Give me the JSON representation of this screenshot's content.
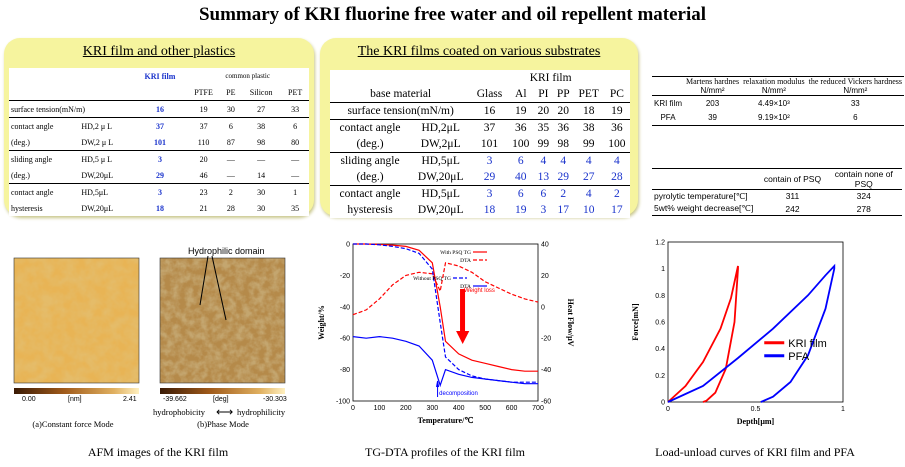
{
  "title": "Summary of  KRI  fluorine free water and oil repellent material",
  "plastics": {
    "heading": "KRI film and other plastics",
    "kri_header": "KRI film",
    "group_header": "common plastic",
    "columns": [
      "PTFE",
      "PE",
      "Silicon",
      "PET"
    ],
    "rows": [
      {
        "label": "surface tension(mN/m)",
        "sub": "",
        "kri": "16",
        "vals": [
          "19",
          "30",
          "27",
          "33"
        ]
      },
      {
        "label": "contact angle",
        "sub": "HD,2 μ L",
        "kri": "37",
        "vals": [
          "37",
          "6",
          "38",
          "6"
        ]
      },
      {
        "label": "(deg.)",
        "sub": "DW,2 μ L",
        "kri": "101",
        "vals": [
          "110",
          "87",
          "98",
          "80"
        ]
      },
      {
        "label": "sliding angle",
        "sub": "HD,5 μ L",
        "kri": "3",
        "vals": [
          "20",
          "—",
          "—",
          "—"
        ]
      },
      {
        "label": "(deg.)",
        "sub": "DW,20μL",
        "kri": "29",
        "vals": [
          "46",
          "—",
          "14",
          "—"
        ]
      },
      {
        "label": "contact angle",
        "sub": "HD,5μL",
        "kri": "3",
        "vals": [
          "23",
          "2",
          "30",
          "1"
        ]
      },
      {
        "label": "hysteresis",
        "sub": "DW,20μL",
        "kri": "18",
        "vals": [
          "21",
          "28",
          "30",
          "35"
        ]
      }
    ]
  },
  "substrates": {
    "heading": "The KRI films coated on various substrates",
    "group_header": "KRI film",
    "base_label": "base material",
    "columns": [
      "Glass",
      "Al",
      "PI",
      "PP",
      "PET",
      "PC"
    ],
    "rows": [
      {
        "label": "surface tension(mN/m)",
        "sub": "",
        "vals": [
          "16",
          "19",
          "20",
          "20",
          "18",
          "19"
        ]
      },
      {
        "label": "contact angle",
        "sub": "HD,2μL",
        "vals": [
          "37",
          "36",
          "35",
          "36",
          "38",
          "36"
        ]
      },
      {
        "label": "(deg.)",
        "sub": "DW,2μL",
        "vals": [
          "101",
          "100",
          "99",
          "98",
          "99",
          "100"
        ]
      },
      {
        "label": "sliding angle",
        "sub": "HD,5μL",
        "vals": [
          "3",
          "6",
          "4",
          "4",
          "4",
          "4"
        ]
      },
      {
        "label": "(deg.)",
        "sub": "DW,20μL",
        "vals": [
          "29",
          "40",
          "13",
          "29",
          "27",
          "28"
        ]
      },
      {
        "label": "contact angle",
        "sub": "HD,5μL",
        "vals": [
          "3",
          "6",
          "6",
          "2",
          "4",
          "2"
        ]
      },
      {
        "label": "hysteresis",
        "sub": "DW,20μL",
        "vals": [
          "18",
          "19",
          "3",
          "17",
          "10",
          "17"
        ]
      }
    ]
  },
  "hardness": {
    "headers": [
      "Martens hardnes",
      "relaxation modulus",
      "the reduced Vickers hardness"
    ],
    "units": [
      "N/mm²",
      "N/mm²",
      "N/mm²"
    ],
    "rows": [
      {
        "label": "KRI film",
        "vals": [
          "203",
          "4.49×10³",
          "33"
        ]
      },
      {
        "label": "PFA",
        "vals": [
          "39",
          "9.19×10²",
          "6"
        ]
      }
    ]
  },
  "thermal": {
    "headers": [
      "contain of PSQ",
      "contain none of PSQ"
    ],
    "rows": [
      {
        "label": "pyrolytic temperature[℃]",
        "vals": [
          "311",
          "324"
        ]
      },
      {
        "label": "5wt% weight decrease[℃]",
        "vals": [
          "242",
          "278"
        ]
      }
    ]
  },
  "afm": {
    "label_domain": "Hydrophilic domain",
    "left_caption": "(a)Constant force Mode",
    "right_caption": "(b)Phase Mode",
    "hydrophobicity": "hydrophobicity",
    "hydrophilicity": "hydrophilicity",
    "arrow": "⟷",
    "caption": "AFM images of the KRI film",
    "scale_left": [
      "0.00",
      "[nm]",
      "2.41"
    ],
    "scale_right": [
      "-39.662",
      "[deg]",
      "-30.303"
    ],
    "ticks": [
      "0",
      "100",
      "200",
      "300",
      "400",
      "500"
    ]
  },
  "tgdta": {
    "caption": "TG-DTA profiles of the KRI film",
    "xlabel": "Temperature/℃",
    "ylabel_left": "Weight/%",
    "ylabel_right": "Heat Flow/μV",
    "legend": [
      "With PSQ  TG",
      "DTA",
      "Without PSQ TG",
      "DTA"
    ],
    "annot_weight": "Weight loss",
    "annot_decomp": "decomposition",
    "colors": {
      "with": "#ff0000",
      "without": "#0000ff"
    }
  },
  "chart_data": [
    {
      "type": "line",
      "x": [
        0,
        50,
        100,
        150,
        200,
        250,
        300,
        330,
        350,
        400,
        450,
        500,
        550,
        600,
        650,
        700
      ],
      "xlim": [
        0,
        700
      ],
      "ylim": [
        -100,
        0
      ],
      "y2lim": [
        -60,
        40
      ],
      "series": [
        {
          "name": "With PSQ TG",
          "axis": "left",
          "values": [
            0,
            0,
            -0.3,
            -0.7,
            -1.5,
            -4,
            -12,
            -40,
            -62,
            -70,
            -74,
            -76,
            -78,
            -80,
            -81,
            -81
          ]
        },
        {
          "name": "With PSQ DTA",
          "axis": "right",
          "values": [
            -5,
            -2,
            5,
            14,
            20,
            22,
            21,
            10,
            28,
            26,
            22,
            16,
            12,
            8,
            5,
            3
          ]
        },
        {
          "name": "Without PSQ TG",
          "axis": "left",
          "values": [
            0,
            0,
            -0.5,
            -1.5,
            -3,
            -6,
            -16,
            -50,
            -72,
            -80,
            -84,
            -86,
            -87,
            -88,
            -88,
            -88
          ]
        },
        {
          "name": "Without PSQ DTA",
          "axis": "right",
          "values": [
            -19,
            -20,
            -19,
            -20,
            -22,
            -25,
            -34,
            -50,
            -40,
            -43,
            -45,
            -46,
            -47,
            -48,
            -49,
            -49
          ]
        }
      ],
      "ylabel": "Weight/%",
      "y2label": "Heat Flow/μV",
      "xlabel": "Temperature/℃",
      "xticks": [
        0,
        100,
        200,
        300,
        400,
        500,
        600,
        700
      ],
      "yticks": [
        0,
        -20,
        -40,
        -60,
        -80,
        -100
      ],
      "y2ticks": [
        40,
        20,
        0,
        -20,
        -40,
        -60
      ]
    },
    {
      "type": "line",
      "xlabel": "Depth[μm]",
      "ylabel": "Force[mN]",
      "xlim": [
        0,
        1
      ],
      "ylim": [
        0,
        1.2
      ],
      "xticks": [
        0,
        0.5,
        1
      ],
      "yticks": [
        0,
        0.2,
        0.4,
        0.6,
        0.8,
        1,
        1.2
      ],
      "series": [
        {
          "name": "KRI film",
          "color": "#ff0000",
          "x": [
            0,
            0.1,
            0.2,
            0.3,
            0.36,
            0.4,
            0.4,
            0.38,
            0.33,
            0.27,
            0.22,
            0.2
          ],
          "y": [
            0,
            0.12,
            0.3,
            0.55,
            0.78,
            1.02,
            1.0,
            0.6,
            0.25,
            0.07,
            0.01,
            0
          ]
        },
        {
          "name": "PFA",
          "color": "#0000ff",
          "x": [
            0,
            0.2,
            0.4,
            0.6,
            0.8,
            0.9,
            0.95,
            0.95,
            0.9,
            0.8,
            0.7,
            0.6,
            0.53
          ],
          "y": [
            0,
            0.12,
            0.33,
            0.55,
            0.8,
            0.95,
            1.02,
            1.0,
            0.7,
            0.35,
            0.15,
            0.04,
            0
          ]
        }
      ],
      "caption": "Load-unload curves of KRI film and PFA"
    }
  ]
}
